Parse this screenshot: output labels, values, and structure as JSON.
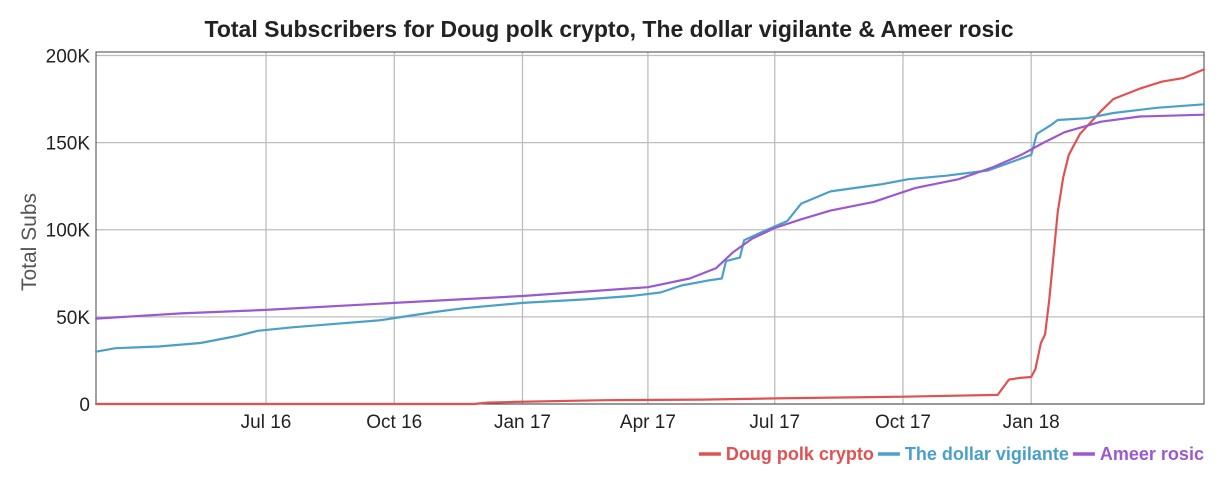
{
  "chart_data": {
    "type": "line",
    "title": "Total Subscribers for Doug polk crypto, The dollar vigilante & Ameer rosic",
    "xlabel": "",
    "ylabel": "Total Subs",
    "x_range": [
      "2016-03-01",
      "2018-05-05"
    ],
    "x_ticks": [
      {
        "date": "2016-07-01",
        "label": "Jul 16"
      },
      {
        "date": "2016-10-01",
        "label": "Oct 16"
      },
      {
        "date": "2017-01-01",
        "label": "Jan 17"
      },
      {
        "date": "2017-04-01",
        "label": "Apr 17"
      },
      {
        "date": "2017-07-01",
        "label": "Jul 17"
      },
      {
        "date": "2017-10-01",
        "label": "Oct 17"
      },
      {
        "date": "2018-01-01",
        "label": "Jan 18"
      }
    ],
    "ylim": [
      0,
      202000
    ],
    "y_ticks": [
      {
        "value": 0,
        "label": "0"
      },
      {
        "value": 50000,
        "label": "50K"
      },
      {
        "value": 100000,
        "label": "100K"
      },
      {
        "value": 150000,
        "label": "150K"
      },
      {
        "value": 200000,
        "label": "200K"
      }
    ],
    "grid": true,
    "legend_position": "bottom-right",
    "series": [
      {
        "name": "Doug polk crypto",
        "color": "#e05252",
        "points": [
          [
            "2016-03-01",
            0
          ],
          [
            "2016-11-27",
            0
          ],
          [
            "2016-12-07",
            800
          ],
          [
            "2016-12-27",
            1200
          ],
          [
            "2017-03-01",
            2200
          ],
          [
            "2017-05-10",
            2500
          ],
          [
            "2017-07-01",
            3200
          ],
          [
            "2017-10-01",
            4200
          ],
          [
            "2017-12-08",
            5200
          ],
          [
            "2017-12-16",
            14000
          ],
          [
            "2017-12-24",
            15000
          ],
          [
            "2018-01-01",
            15500
          ],
          [
            "2018-01-04",
            20000
          ],
          [
            "2018-01-08",
            35000
          ],
          [
            "2018-01-11",
            40000
          ],
          [
            "2018-01-14",
            60000
          ],
          [
            "2018-01-17",
            85000
          ],
          [
            "2018-01-20",
            110000
          ],
          [
            "2018-01-24",
            130000
          ],
          [
            "2018-01-28",
            143000
          ],
          [
            "2018-02-05",
            155000
          ],
          [
            "2018-02-20",
            168000
          ],
          [
            "2018-03-01",
            175000
          ],
          [
            "2018-03-20",
            181000
          ],
          [
            "2018-04-05",
            185000
          ],
          [
            "2018-04-20",
            187000
          ],
          [
            "2018-05-05",
            192000
          ]
        ]
      },
      {
        "name": "The dollar vigilante",
        "color": "#4aa0c8",
        "points": [
          [
            "2016-03-01",
            30000
          ],
          [
            "2016-03-15",
            32000
          ],
          [
            "2016-04-15",
            33000
          ],
          [
            "2016-05-15",
            35000
          ],
          [
            "2016-06-10",
            39000
          ],
          [
            "2016-06-25",
            42000
          ],
          [
            "2016-07-20",
            44000
          ],
          [
            "2016-08-20",
            46000
          ],
          [
            "2016-09-20",
            48000
          ],
          [
            "2016-10-15",
            51000
          ],
          [
            "2016-11-01",
            53000
          ],
          [
            "2016-11-20",
            55000
          ],
          [
            "2017-01-01",
            58000
          ],
          [
            "2017-02-15",
            60000
          ],
          [
            "2017-03-20",
            62000
          ],
          [
            "2017-04-10",
            64000
          ],
          [
            "2017-04-25",
            68000
          ],
          [
            "2017-05-15",
            71000
          ],
          [
            "2017-05-24",
            72000
          ],
          [
            "2017-05-27",
            82000
          ],
          [
            "2017-06-06",
            84000
          ],
          [
            "2017-06-09",
            94000
          ],
          [
            "2017-06-20",
            98000
          ],
          [
            "2017-07-10",
            105000
          ],
          [
            "2017-07-20",
            115000
          ],
          [
            "2017-08-10",
            122000
          ],
          [
            "2017-09-15",
            126000
          ],
          [
            "2017-10-05",
            129000
          ],
          [
            "2017-11-01",
            131000
          ],
          [
            "2017-12-01",
            134000
          ],
          [
            "2017-12-15",
            138000
          ],
          [
            "2018-01-01",
            143000
          ],
          [
            "2018-01-05",
            155000
          ],
          [
            "2018-01-15",
            160000
          ],
          [
            "2018-01-20",
            163000
          ],
          [
            "2018-02-10",
            164000
          ],
          [
            "2018-03-01",
            167000
          ],
          [
            "2018-04-01",
            170000
          ],
          [
            "2018-05-05",
            172000
          ]
        ]
      },
      {
        "name": "Ameer rosic",
        "color": "#9b59d0",
        "points": [
          [
            "2016-03-01",
            49000
          ],
          [
            "2016-05-01",
            52000
          ],
          [
            "2016-07-01",
            54000
          ],
          [
            "2016-10-01",
            58000
          ],
          [
            "2017-01-01",
            62000
          ],
          [
            "2017-04-01",
            67000
          ],
          [
            "2017-05-01",
            72000
          ],
          [
            "2017-05-20",
            78000
          ],
          [
            "2017-06-01",
            87000
          ],
          [
            "2017-06-15",
            95000
          ],
          [
            "2017-07-01",
            101000
          ],
          [
            "2017-07-20",
            106000
          ],
          [
            "2017-08-10",
            111000
          ],
          [
            "2017-09-10",
            116000
          ],
          [
            "2017-10-10",
            124000
          ],
          [
            "2017-11-10",
            129000
          ],
          [
            "2017-12-05",
            136000
          ],
          [
            "2017-12-25",
            143000
          ],
          [
            "2018-01-10",
            150000
          ],
          [
            "2018-01-25",
            156000
          ],
          [
            "2018-02-20",
            162000
          ],
          [
            "2018-03-20",
            165000
          ],
          [
            "2018-05-05",
            166000
          ]
        ]
      }
    ]
  }
}
